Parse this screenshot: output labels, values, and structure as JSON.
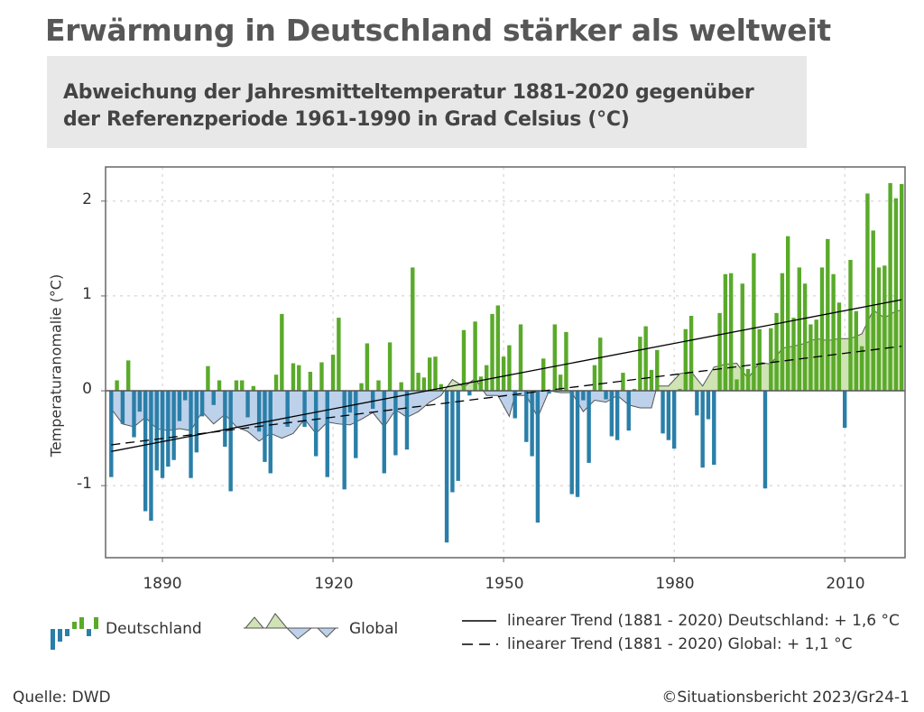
{
  "title": "Erwärmung in Deutschland stärker als weltweit",
  "subtitle_line1": "Abweichung der Jahresmitteltemperatur 1881-2020 gegenüber",
  "subtitle_line2": "der Referenzperiode 1961-1990 in Grad Celsius (°C)",
  "footer": {
    "source": "Quelle: DWD",
    "copyright": "©Situationsbericht 2023/Gr24-1"
  },
  "colors": {
    "positive_bar": "#5aaa2a",
    "negative_bar": "#2a7fa8",
    "global_positive": "#cfe3b5",
    "global_negative": "#bdd1ea",
    "line": "#000000"
  },
  "chart_data": {
    "type": "bar",
    "ylabel": "Temperaturanomalie (°C)",
    "xlabel": "",
    "xlim": [
      1880,
      2020.6
    ],
    "ylim": [
      -1.76,
      2.36
    ],
    "grid": true,
    "legend_position": "bottom",
    "x_ticks": [
      "1890",
      "1920",
      "1950",
      "1980",
      "2010"
    ],
    "y_ticks": [
      "2",
      "1",
      "0",
      "-1"
    ],
    "series": [
      {
        "name": "Deutschland",
        "type": "bar",
        "start_year": 1881,
        "values": [
          -0.91,
          0.11,
          -0.35,
          0.32,
          -0.49,
          -0.22,
          -1.27,
          -1.37,
          -0.84,
          -0.92,
          -0.8,
          -0.73,
          -0.32,
          -0.1,
          -0.92,
          -0.65,
          -0.27,
          0.26,
          -0.15,
          0.11,
          -0.59,
          -1.06,
          0.11,
          0.11,
          -0.28,
          0.05,
          -0.43,
          -0.75,
          -0.87,
          0.17,
          0.81,
          -0.38,
          0.29,
          0.27,
          -0.38,
          0.2,
          -0.69,
          0.3,
          -0.91,
          0.38,
          0.77,
          -1.04,
          -0.23,
          -0.71,
          0.08,
          0.5,
          -0.19,
          0.11,
          -0.87,
          0.51,
          -0.68,
          0.09,
          -0.62,
          1.3,
          0.19,
          0.14,
          0.35,
          0.36,
          0.07,
          -1.6,
          -1.07,
          -0.95,
          0.64,
          -0.05,
          0.73,
          0.15,
          0.27,
          0.81,
          0.9,
          0.36,
          0.48,
          -0.29,
          0.7,
          -0.54,
          -0.69,
          -1.39,
          0.34,
          -0.03,
          0.7,
          0.17,
          0.62,
          -1.09,
          -1.12,
          -0.1,
          -0.76,
          0.27,
          0.56,
          -0.09,
          -0.48,
          -0.52,
          0.19,
          -0.42,
          0.02,
          0.57,
          0.68,
          0.22,
          0.43,
          -0.45,
          -0.52,
          -0.61,
          0.02,
          0.65,
          0.79,
          -0.26,
          -0.81,
          -0.3,
          -0.78,
          0.82,
          1.23,
          1.24,
          0.12,
          1.13,
          0.23,
          1.45,
          0.65,
          -1.03,
          0.66,
          0.82,
          1.24,
          1.63,
          0.77,
          1.3,
          1.13,
          0.7,
          0.75,
          1.3,
          1.6,
          1.23,
          0.93,
          -0.39,
          1.38,
          0.84,
          0.47,
          2.08,
          1.69,
          1.3,
          1.32,
          2.19,
          2.03,
          2.18
        ]
      },
      {
        "name": "Global",
        "type": "area",
        "x": [
          1881,
          1883,
          1885,
          1887,
          1889,
          1891,
          1893,
          1895,
          1897,
          1899,
          1901,
          1903,
          1905,
          1907,
          1909,
          1911,
          1913,
          1915,
          1917,
          1919,
          1921,
          1923,
          1925,
          1927,
          1929,
          1931,
          1933,
          1935,
          1937,
          1939,
          1941,
          1943,
          1945,
          1947,
          1949,
          1951,
          1952,
          1954,
          1956,
          1958,
          1960,
          1962,
          1964,
          1966,
          1968,
          1970,
          1972,
          1974,
          1976,
          1977,
          1979,
          1981,
          1983,
          1985,
          1987,
          1989,
          1991,
          1993,
          1995,
          1997,
          1999,
          2001,
          2003,
          2005,
          2007,
          2009,
          2011,
          2013,
          2015,
          2017,
          2019,
          2020
        ],
        "values": [
          -0.19,
          -0.35,
          -0.38,
          -0.28,
          -0.4,
          -0.42,
          -0.4,
          -0.42,
          -0.22,
          -0.35,
          -0.25,
          -0.38,
          -0.43,
          -0.53,
          -0.45,
          -0.5,
          -0.45,
          -0.3,
          -0.45,
          -0.33,
          -0.35,
          -0.36,
          -0.3,
          -0.23,
          -0.38,
          -0.2,
          -0.28,
          -0.22,
          -0.12,
          -0.05,
          0.12,
          0.04,
          0.13,
          -0.05,
          -0.05,
          -0.27,
          -0.05,
          -0.05,
          -0.28,
          0.0,
          -0.02,
          -0.02,
          -0.22,
          -0.1,
          -0.12,
          -0.05,
          -0.15,
          -0.18,
          -0.18,
          0.05,
          0.05,
          0.18,
          0.2,
          0.05,
          0.25,
          0.28,
          0.29,
          0.13,
          0.3,
          0.28,
          0.45,
          0.47,
          0.5,
          0.55,
          0.53,
          0.55,
          0.55,
          0.6,
          0.85,
          0.77,
          0.84,
          0.85
        ]
      },
      {
        "name": "linearer Trend (1881 - 2020) Deutschland: + 1,6 °C",
        "type": "line",
        "style": "solid",
        "x": [
          1881,
          2020
        ],
        "values": [
          -0.64,
          0.96
        ]
      },
      {
        "name": "linearer Trend (1881 - 2020) Global: + 1,1 °C",
        "type": "line",
        "style": "dashed",
        "x": [
          1881,
          2020
        ],
        "values": [
          -0.57,
          0.47
        ]
      }
    ]
  }
}
